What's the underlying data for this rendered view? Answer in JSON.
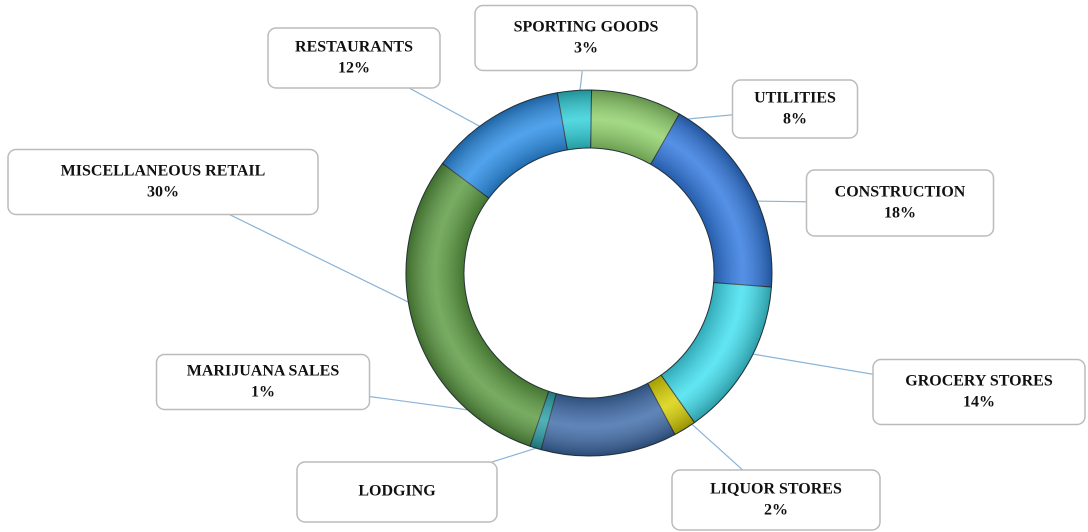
{
  "chart_data": {
    "type": "donut",
    "categories": [
      "SPORTING GOODS",
      "UTILITIES",
      "CONSTRUCTION",
      "GROCERY STORES",
      "LIQUOR STORES",
      "LODGING",
      "MARIJUANA SALES",
      "MISCELLANEOUS RETAIL",
      "RESTAURANTS"
    ],
    "values": [
      3,
      8,
      18,
      14,
      2,
      12,
      1,
      30,
      12
    ],
    "value_labels": [
      "3%",
      "8%",
      "18%",
      "14%",
      "2%",
      null,
      "1%",
      "30%",
      "12%"
    ],
    "colors": [
      "#2ecfd8",
      "#8fd16a",
      "#2f78e0",
      "#3fe0f0",
      "#d8d000",
      "#3d6aa8",
      "#2aa0a8",
      "#5a9a40",
      "#2a8ee8"
    ]
  }
}
